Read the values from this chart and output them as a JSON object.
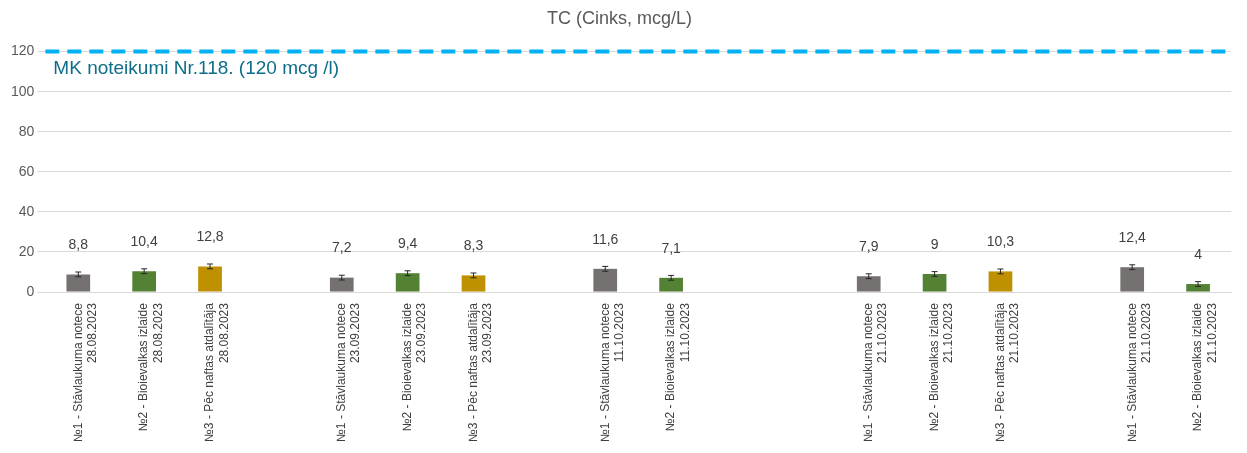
{
  "chart_data": {
    "type": "bar",
    "title": "TC (Cinks, mcg/L)",
    "categories": [
      "№1 - Stāvlaukuma notece\n28.08.2023",
      "№2 - Bioievalkas izlaide\n28.08.2023",
      "№3 - Pēc naftas atdalītāja\n28.08.2023",
      null,
      "№1 - Stāvlaukuma notece\n23.09.2023",
      "№2 - Bioievalkas izlaide\n23.09.2023",
      "№3 - Pēc naftas atdalītāja\n23.09.2023",
      null,
      "№1 - Stāvlaukuma notece\n11.10.2023",
      "№2 - Bioievalkas izlaide\n11.10.2023",
      null,
      null,
      "№1 - Stāvlaukuma notece\n21.10.2023",
      "№2 - Bioievalkas izlaide\n21.10.2023",
      "№3 - Pēc naftas atdalītāja\n21.10.2023",
      null,
      "№1 - Stāvlaukuma notece\n21.10.2023",
      "№2 - Bioievalkas izlaide\n21.10.2023"
    ],
    "values": [
      8.8,
      10.4,
      12.8,
      null,
      7.2,
      9.4,
      8.3,
      null,
      11.6,
      7.1,
      null,
      null,
      7.9,
      9,
      10.3,
      null,
      12.4,
      4
    ],
    "value_labels": [
      "8,8",
      "10,4",
      "12,8",
      null,
      "7,2",
      "9,4",
      "8,3",
      null,
      "11,6",
      "7,1",
      null,
      null,
      "7,9",
      "9",
      "10,3",
      null,
      "12,4",
      "4"
    ],
    "errors": [
      1.2,
      1.2,
      1.2,
      null,
      1.2,
      1.2,
      1.2,
      null,
      1.2,
      1.2,
      null,
      null,
      1.2,
      1.2,
      1.2,
      null,
      1.2,
      1.2
    ],
    "colors": [
      "#767171",
      "#548235",
      "#bf9000",
      "#767171",
      "#767171",
      "#548235",
      "#bf9000",
      "#767171",
      "#767171",
      "#548235",
      "#767171",
      "#767171",
      "#767171",
      "#548235",
      "#bf9000",
      "#767171",
      "#767171",
      "#548235"
    ],
    "ylim": [
      0,
      120
    ],
    "yticks": [
      0,
      20,
      40,
      60,
      80,
      100,
      120
    ],
    "grid": "y",
    "legend": false,
    "ref_lines": [
      {
        "axis": "y",
        "value": 120,
        "label": "MK noteikumi Nr.118. (120 mcg /l)",
        "color": "#00b0f0",
        "line_style": "dashed"
      }
    ]
  }
}
